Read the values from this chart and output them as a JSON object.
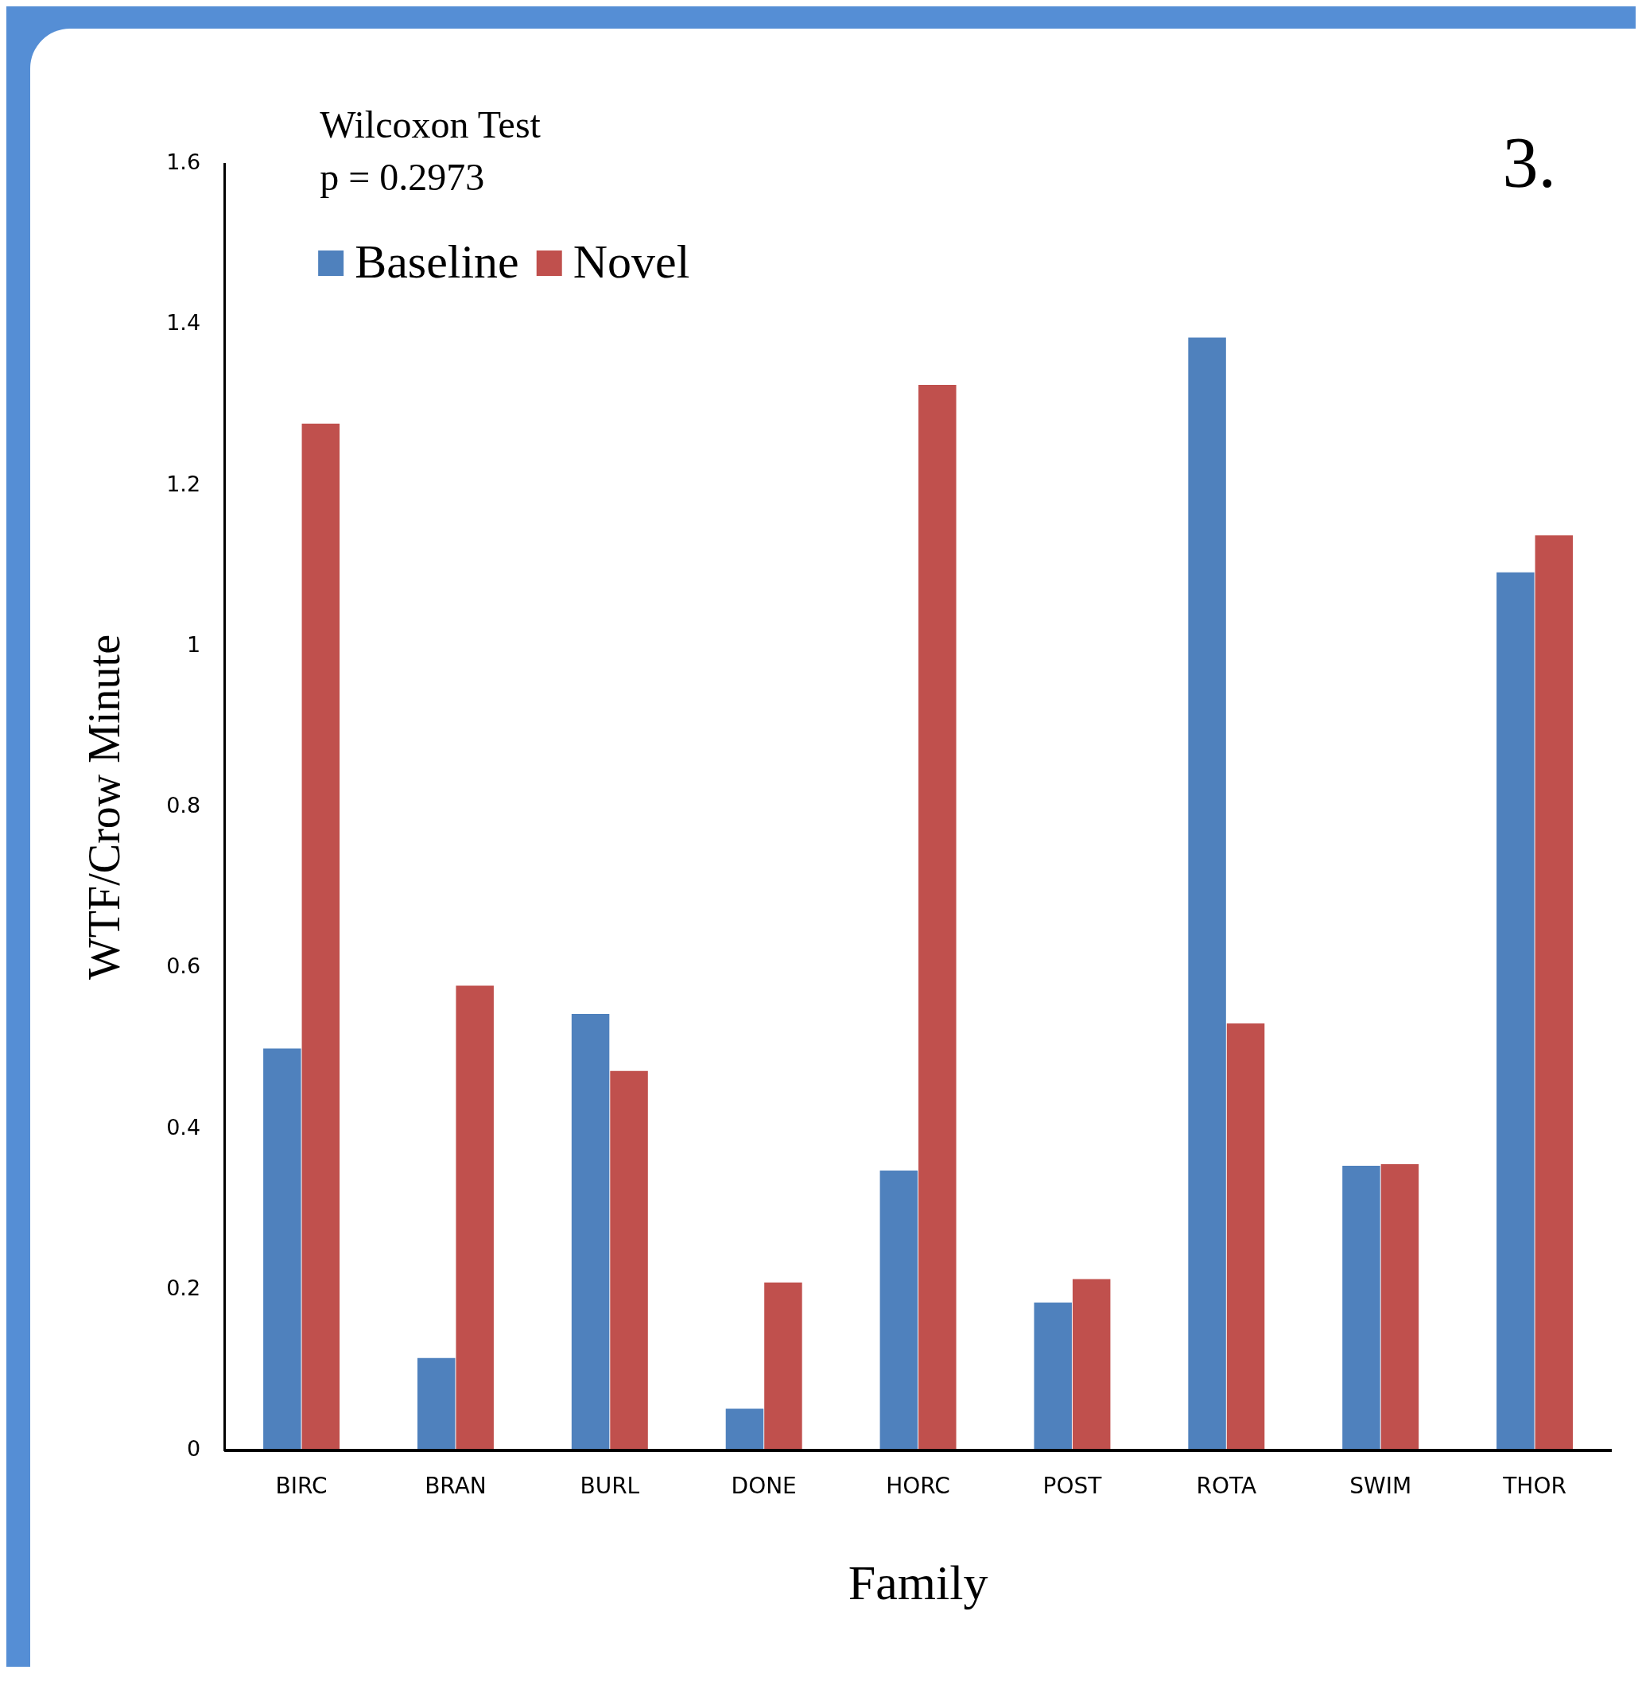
{
  "chart_data": {
    "type": "bar",
    "title": "3.",
    "annotations": [
      "Wilcoxon Test",
      "p = 0.2973"
    ],
    "xlabel": "Family",
    "ylabel": "WTF/Crow Minute",
    "categories": [
      "BIRC",
      "BRAN",
      "BURL",
      "DONE",
      "HORC",
      "POST",
      "ROTA",
      "SWIM",
      "THOR"
    ],
    "series": [
      {
        "name": "Baseline",
        "color": "#4f81bd",
        "values": [
          0.5,
          0.115,
          0.543,
          0.052,
          0.348,
          0.184,
          1.384,
          0.354,
          1.092
        ]
      },
      {
        "name": "Novel",
        "color": "#c0504d",
        "values": [
          1.277,
          0.578,
          0.472,
          0.209,
          1.325,
          0.213,
          0.531,
          0.356,
          1.138
        ]
      }
    ],
    "ylim": [
      0,
      1.6
    ],
    "yticks": [
      0,
      0.2,
      0.4,
      0.6,
      0.8,
      1,
      1.2,
      1.4,
      1.6
    ],
    "grid": false,
    "legend": "top left"
  }
}
